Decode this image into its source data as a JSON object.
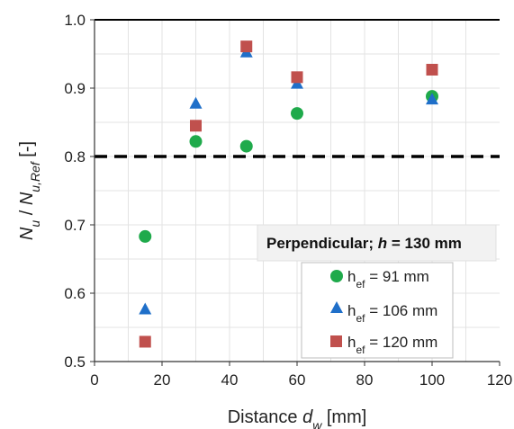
{
  "chart_data": {
    "type": "scatter",
    "x_axis": {
      "label_main": "Distance ",
      "label_var": "d",
      "label_sub": "w",
      "label_unit": " [mm]",
      "range": [
        0,
        120
      ],
      "ticks": [
        0,
        20,
        40,
        60,
        80,
        100,
        120
      ],
      "tick_labels": [
        "0",
        "20",
        "40",
        "60",
        "80",
        "100",
        "120"
      ]
    },
    "y_axis": {
      "label_n1": "N",
      "label_sub1": "u",
      "label_sep": " / ",
      "label_n2": "N",
      "label_sub2": "u,Ref",
      "label_unit": " [-]",
      "range": [
        0.5,
        1.0
      ],
      "ticks": [
        0.5,
        0.6,
        0.7,
        0.8,
        0.9,
        1.0
      ],
      "tick_labels": [
        "0.5",
        "0.6",
        "0.7",
        "0.8",
        "0.9",
        "1.0"
      ]
    },
    "grid": true,
    "reference_line": {
      "y": 0.8,
      "style": "dashed",
      "color": "#000000"
    },
    "top_line": {
      "y": 1.0,
      "style": "solid",
      "color": "#000000"
    },
    "title_box": {
      "text_main": "Perpendicular; ",
      "text_var": "h",
      "text_rest": " = 130 mm",
      "placement": "center-right"
    },
    "legend_placement": "bottom-right",
    "series": [
      {
        "name_main": "h",
        "name_sub": "ef",
        "name_rest": " = 91 mm",
        "marker": "circle",
        "color": "#1faa4b",
        "points": [
          [
            15,
            0.683
          ],
          [
            30,
            0.822
          ],
          [
            45,
            0.815
          ],
          [
            60,
            0.863
          ],
          [
            100,
            0.888
          ]
        ]
      },
      {
        "name_main": "h",
        "name_sub": "ef",
        "name_rest": " = 106 mm",
        "marker": "triangle",
        "color": "#1f6fc9",
        "points": [
          [
            15,
            0.577
          ],
          [
            30,
            0.878
          ],
          [
            45,
            0.953
          ],
          [
            60,
            0.907
          ],
          [
            100,
            0.884
          ]
        ]
      },
      {
        "name_main": "h",
        "name_sub": "ef",
        "name_rest": " = 120 mm",
        "marker": "square",
        "color": "#c0504d",
        "points": [
          [
            15,
            0.529
          ],
          [
            30,
            0.845
          ],
          [
            45,
            0.961
          ],
          [
            60,
            0.916
          ],
          [
            100,
            0.927
          ]
        ]
      }
    ]
  }
}
